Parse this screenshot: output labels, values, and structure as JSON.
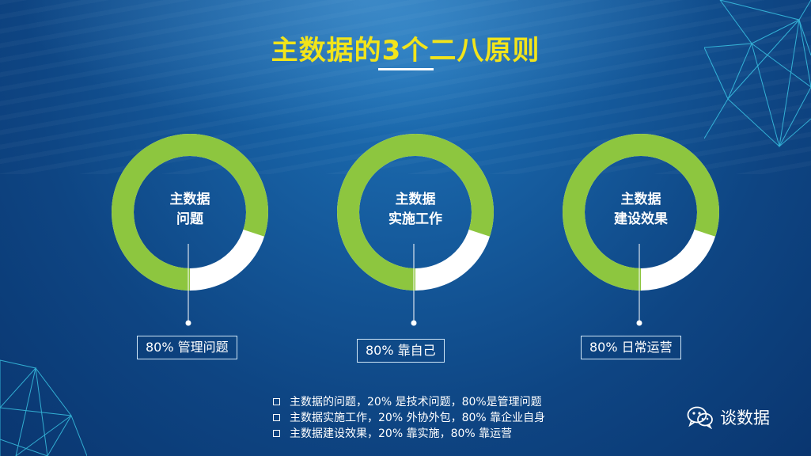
{
  "slide": {
    "title": "主数据的3个二八原则",
    "rings": [
      {
        "line1": "主数据",
        "line2": "问题",
        "tag": "80% 管理问题",
        "green_fraction": 0.8
      },
      {
        "line1": "主数据",
        "line2": "实施工作",
        "tag": "80% 靠自己",
        "green_fraction": 0.8
      },
      {
        "line1": "主数据",
        "line2": "建设效果",
        "tag": "80% 日常运营",
        "green_fraction": 0.8
      }
    ],
    "bullets": [
      "主数据的问题，20% 是技术问题，80%是管理问题",
      "主数据实施工作，20% 外协外包，80% 靠企业自身",
      "主数据建设效果，20% 靠实施，80% 靠运营"
    ],
    "brand": {
      "name": "谈数据",
      "icon": "wechat-icon"
    }
  },
  "colors": {
    "ring_green": "#8dc63f",
    "ring_white": "#ffffff",
    "title_yellow": "#f2e41a",
    "net_cyan": "#3fd4f0"
  }
}
